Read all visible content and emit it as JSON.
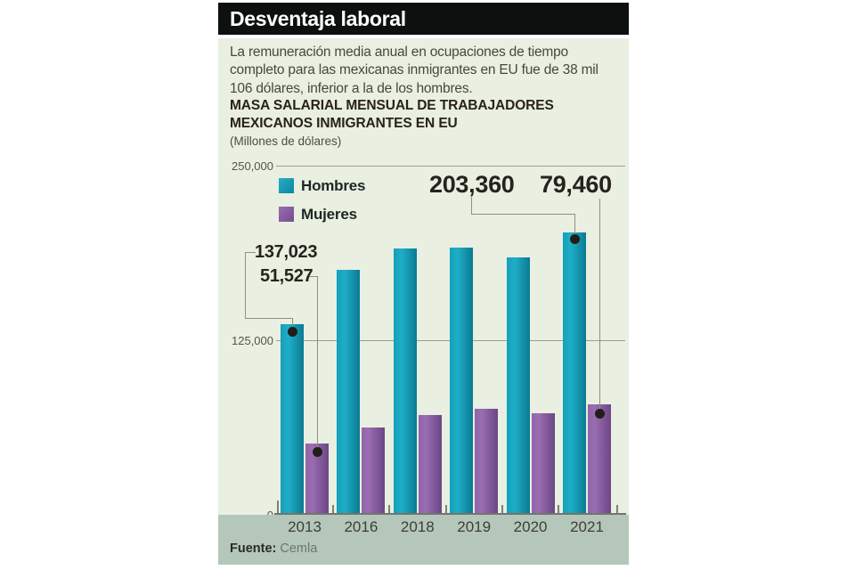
{
  "header": {
    "title": "Desventaja laboral"
  },
  "intro": {
    "line1": "La remuneración media anual en ocupaciones de tiempo",
    "line2": "completo para las mexicanas inmigrantes en EU fue de 38 mil",
    "line3": "106 dólares, inferior a la de los hombres."
  },
  "chart": {
    "title_line1": "MASA SALARIAL MENSUAL DE TRABAJADORES",
    "title_line2": "MEXICANOS INMIGRANTES EN EU",
    "units": "(Millones de dólares)",
    "y_labels": {
      "top": "250,000",
      "mid": "125,000",
      "zero": "0"
    },
    "legend": {
      "hombres": "Hombres",
      "mujeres": "Mujeres"
    },
    "annotations": {
      "hombres_2013": "137,023",
      "mujeres_2013": "51,527",
      "hombres_2021": "203,360",
      "mujeres_2021": "79,460"
    },
    "colors": {
      "hombres": "#14a0ba",
      "mujeres": "#8d61a8",
      "panel_background": "#e9efe1",
      "footer_background": "#b5c6bb",
      "header_background": "#0c100e"
    }
  },
  "chart_data": {
    "type": "bar",
    "title": "MASA SALARIAL MENSUAL DE TRABAJADORES MEXICANOS INMIGRANTES EN EU",
    "subtitle": "(Millones de dólares)",
    "categories": [
      "2013",
      "2016",
      "2018",
      "2019",
      "2020",
      "2021"
    ],
    "series": [
      {
        "name": "Hombres",
        "color": "#14a0ba",
        "values": [
          137023,
          176000,
          192000,
          192500,
          185500,
          203360
        ]
      },
      {
        "name": "Mujeres",
        "color": "#8d61a8",
        "values": [
          51527,
          63000,
          72000,
          76000,
          73000,
          79460
        ]
      }
    ],
    "labeled_points": [
      {
        "series": "Hombres",
        "category": "2013",
        "value": 137023,
        "label": "137,023"
      },
      {
        "series": "Mujeres",
        "category": "2013",
        "value": 51527,
        "label": "51,527"
      },
      {
        "series": "Hombres",
        "category": "2021",
        "value": 203360,
        "label": "203,360"
      },
      {
        "series": "Mujeres",
        "category": "2021",
        "value": 79460,
        "label": "79,460"
      }
    ],
    "ylim": [
      0,
      250000
    ],
    "yticks": [
      0,
      125000,
      250000
    ],
    "ytick_labels": [
      "0",
      "125,000",
      "250,000"
    ],
    "grid": true,
    "legend_position": "top-left"
  },
  "footer": {
    "source_label": "Fuente:",
    "source_value": "Cemla"
  }
}
